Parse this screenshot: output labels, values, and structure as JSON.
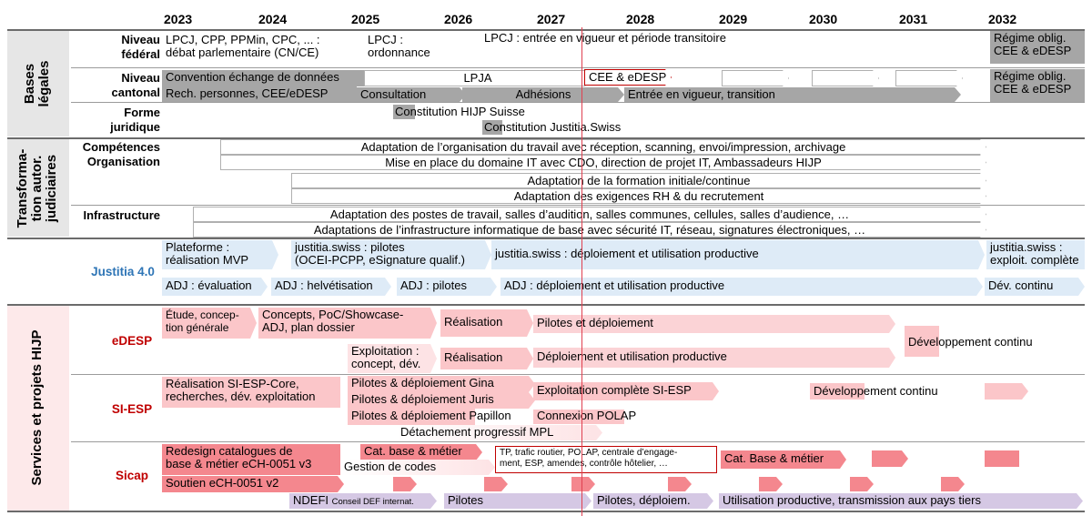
{
  "years": [
    "2023",
    "2024",
    "2025",
    "2026",
    "2027",
    "2028",
    "2029",
    "2030",
    "2031",
    "2032"
  ],
  "sections": {
    "bases": "Bases\nlégales",
    "transfo": "Transforma-\ntion autor.\njudiciaires",
    "services": "Services et projets HIJP"
  },
  "row_labels": {
    "niveau_federal": "Niveau\nfédéral",
    "niveau_cantonal": "Niveau\ncantonal",
    "forme_juridique": "Forme\njuridique",
    "competences": "Compétences\nOrganisation",
    "infrastructure": "Infrastructure"
  },
  "projects": {
    "justitia": "Justitia 4.0",
    "edesp": "eDESP",
    "siesp": "SI-ESP",
    "sicap": "Sicap"
  },
  "colors": {
    "grey": "#a6a6a6",
    "light_grey": "#d9d9d9",
    "blue": "#deebf7",
    "pink": "#fbc6c9",
    "red": "#f4878e",
    "lilac": "#d5c8e4",
    "today_line": "#e04050",
    "justitia_label": "#2e75b6",
    "project_label": "#c00000"
  },
  "bars": {
    "fed1": "LPCJ, CPP, PPMin, CPC, ... :\ndébat parlementaire (CN/CE)",
    "fed2": "LPCJ :\nordonnance",
    "fed3": "LPCJ : entrée en vigueur et période transitoire",
    "fed4": "Régime oblig.\nCEE & eDESP",
    "can1": "Convention échange de données",
    "can2": "LPJA",
    "can3": "CEE & eDESP",
    "can4": "Rech. personnes, CEE/eDESP",
    "can5": "Consultation",
    "can6": "Adhésions",
    "can7": "Entrée en vigueur, transition",
    "can8": "Régime oblig.\nCEE & eDESP",
    "fj1": "Constitution HIJP Suisse",
    "fj2": "Constitution Justitia.Swiss",
    "co1": "Adaptation de l’organisation du travail avec réception, scanning, envoi/impression, archivage",
    "co2": "Mise en place du domaine IT avec CDO, direction de projet IT, Ambassadeurs HIJP",
    "co3": "Adaptation de la formation initiale/continue",
    "co4": "Adaptation des exigences RH & du recrutement",
    "in1": "Adaptation des postes de travail, salles d’audition, salles communes, cellules, salles d’audience, …",
    "in2": "Adaptations de l’infrastructure informatique de base avec sécurité IT, réseau, signatures électroniques, …",
    "j1": "Plateforme :\nréalisation MVP",
    "j2": "justitia.swiss : pilotes\n(OCEI-PCPP, eSignature qualif.)",
    "j3": "justitia.swiss : déploiement et utilisation productive",
    "j4": "justitia.swiss :\nexploit. complète",
    "j5": "ADJ : évaluation",
    "j6": "ADJ : helvétisation",
    "j7": "ADJ : pilotes",
    "j8": "ADJ : déploiement et utilisation productive",
    "j9": "Dév. continu",
    "e1": "Étude, concep-\ntion générale",
    "e2": "Concepts, PoC/Showcase-\nADJ, plan dossier",
    "e3": "Réalisation",
    "e4": "Pilotes et déploiement",
    "e5": "Exploitation :\nconcept, dév.",
    "e6": "Réalisation",
    "e7": "Déploiement et utilisation productive",
    "e8": "Développement continu",
    "s1": "Réalisation SI-ESP-Core,\nrecherches, dév. exploitation",
    "s2": "Pilotes & déploiement Gina",
    "s3": "Pilotes & déploiement Juris",
    "s4": "Pilotes & déploiement Papillon",
    "s5": "Exploitation complète SI-ESP",
    "s6": "Connexion POLAP",
    "s7": "Développement continu",
    "s8": "Détachement progressif MPL",
    "c1": "Redesign catalogues de\nbase & métier eCH-0051 v3",
    "c2": "Cat. base & métier",
    "c3": "Gestion de codes",
    "c4": "TP, trafic routier, POLAP, centrale d’engage-\nment, ESP, amendes, contrôle hôtelier, …",
    "c5": "Cat. Base & métier",
    "c6": "Soutien eCH-0051 v2",
    "n1": "NDEFI",
    "n1s": "Conseil DEF internat.",
    "n2": "Pilotes",
    "n3": "Pilotes, déploiem.",
    "n4": "Utilisation productive, transmission aux pays tiers"
  }
}
